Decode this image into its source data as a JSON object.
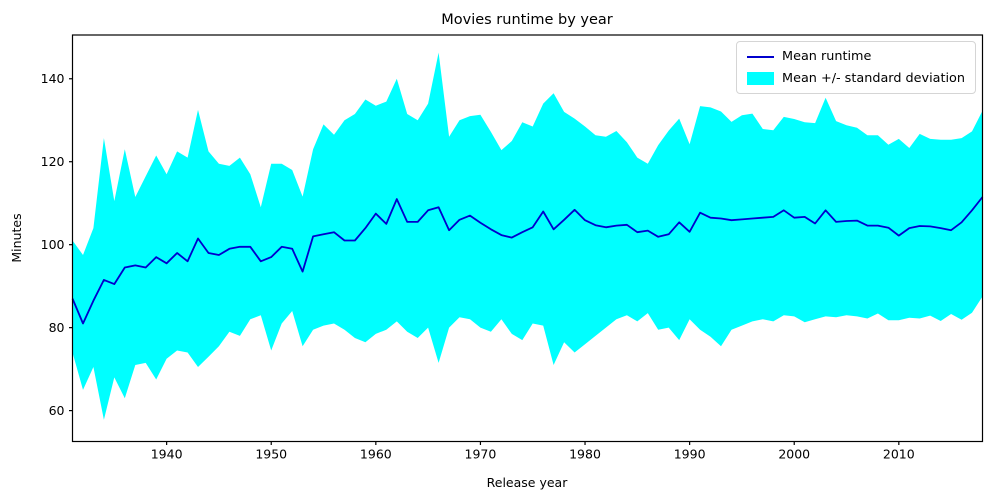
{
  "title": "Movies runtime by year",
  "xlabel": "Release year",
  "ylabel": "Minutes",
  "legend": {
    "items": [
      {
        "label": "Mean runtime",
        "type": "line",
        "color": "#0000cd"
      },
      {
        "label": "Mean +/- standard deviation",
        "type": "patch",
        "color": "#00ffff"
      }
    ],
    "position": "upper right"
  },
  "colors": {
    "mean_line": "#0000cd",
    "band_fill": "#00ffff",
    "axes": "#000000",
    "background": "#ffffff"
  },
  "chart_data": {
    "type": "line",
    "title": "Movies runtime by year",
    "xlabel": "Release year",
    "ylabel": "Minutes",
    "grid": false,
    "legend_position": "upper right",
    "xlim": [
      1931,
      2018
    ],
    "ylim": [
      52.55,
      150.55
    ],
    "xticks": [
      1940,
      1950,
      1960,
      1970,
      1980,
      1990,
      2000,
      2010
    ],
    "yticks": [
      60,
      80,
      100,
      120,
      140
    ],
    "x": [
      1931,
      1932,
      1933,
      1934,
      1935,
      1936,
      1937,
      1938,
      1939,
      1940,
      1941,
      1942,
      1943,
      1944,
      1945,
      1946,
      1947,
      1948,
      1949,
      1950,
      1951,
      1952,
      1953,
      1954,
      1955,
      1956,
      1957,
      1958,
      1959,
      1960,
      1961,
      1962,
      1963,
      1964,
      1965,
      1966,
      1967,
      1968,
      1969,
      1970,
      1971,
      1972,
      1973,
      1974,
      1975,
      1976,
      1977,
      1978,
      1979,
      1980,
      1981,
      1982,
      1983,
      1984,
      1985,
      1986,
      1987,
      1988,
      1989,
      1990,
      1991,
      1992,
      1993,
      1994,
      1995,
      1996,
      1997,
      1998,
      1999,
      2000,
      2001,
      2002,
      2003,
      2004,
      2005,
      2006,
      2007,
      2008,
      2009,
      2010,
      2011,
      2012,
      2013,
      2014,
      2015,
      2016,
      2017,
      2018
    ],
    "series": [
      {
        "name": "Mean runtime",
        "role": "mean-line",
        "color": "#0000cd",
        "values": [
          87.0,
          81.0,
          86.5,
          91.5,
          90.5,
          94.5,
          95.0,
          94.5,
          97.0,
          95.5,
          98.0,
          96.0,
          101.5,
          98.0,
          97.5,
          99.0,
          99.5,
          99.5,
          96.0,
          97.0,
          99.5,
          99.0,
          93.5,
          102.0,
          102.5,
          103.0,
          101.0,
          101.0,
          104.0,
          107.5,
          105.0,
          111.0,
          105.5,
          105.5,
          108.3,
          109.0,
          103.5,
          106.0,
          107.0,
          105.3,
          103.7,
          102.3,
          101.7,
          103.0,
          104.2,
          108.0,
          103.7,
          106.0,
          108.4,
          105.9,
          104.7,
          104.2,
          104.6,
          104.8,
          103.0,
          103.4,
          101.9,
          102.5,
          105.4,
          103.1,
          107.7,
          106.5,
          106.3,
          105.9,
          106.1,
          106.3,
          106.5,
          106.7,
          108.3,
          106.5,
          106.7,
          105.1,
          108.3,
          105.5,
          105.7,
          105.8,
          104.6,
          104.6,
          104.1,
          102.2,
          104.0,
          104.5,
          104.4,
          104.0,
          103.5,
          105.4,
          108.3,
          111.5
        ]
      },
      {
        "name": "Mean + standard deviation",
        "role": "band-upper",
        "color": "#00ffff",
        "values": [
          101.0,
          97.5,
          104.0,
          125.7,
          110.5,
          123.0,
          111.5,
          116.5,
          121.5,
          117.0,
          122.5,
          121.0,
          132.5,
          122.5,
          119.5,
          119.0,
          121.0,
          117.0,
          109.0,
          119.5,
          119.5,
          118.0,
          111.6,
          123.0,
          129.0,
          126.5,
          130.0,
          131.5,
          135.0,
          133.5,
          134.5,
          140.0,
          131.5,
          130.0,
          134.0,
          146.3,
          126.0,
          130.0,
          131.0,
          131.3,
          127.2,
          122.8,
          125.0,
          129.5,
          128.5,
          134.0,
          136.5,
          132.0,
          130.4,
          128.5,
          126.4,
          126.0,
          127.4,
          124.7,
          121.0,
          119.5,
          124.0,
          127.5,
          130.4,
          124.2,
          133.4,
          133.1,
          132.1,
          129.6,
          131.2,
          131.6,
          127.9,
          127.6,
          130.8,
          130.3,
          129.5,
          129.3,
          135.4,
          129.8,
          128.8,
          128.2,
          126.4,
          126.4,
          124.1,
          125.5,
          123.3,
          126.7,
          125.5,
          125.3,
          125.3,
          125.7,
          127.3,
          132.3
        ]
      },
      {
        "name": "Mean - standard deviation",
        "role": "band-lower",
        "color": "#00ffff",
        "values": [
          74.0,
          65.0,
          70.5,
          57.8,
          68.0,
          63.0,
          71.0,
          71.5,
          67.5,
          72.5,
          74.5,
          74.0,
          70.5,
          73.0,
          75.5,
          79.0,
          78.0,
          82.0,
          83.0,
          74.5,
          81.0,
          84.0,
          75.5,
          79.5,
          80.5,
          81.0,
          79.5,
          77.5,
          76.5,
          78.5,
          79.5,
          81.5,
          79.0,
          77.5,
          80.0,
          71.5,
          80.0,
          82.5,
          82.0,
          80.0,
          79.0,
          82.0,
          78.5,
          77.0,
          81.0,
          80.5,
          71.0,
          76.5,
          74.0,
          76.0,
          78.0,
          80.0,
          82.0,
          83.0,
          81.5,
          83.5,
          79.5,
          80.0,
          77.0,
          82.0,
          79.5,
          77.8,
          75.5,
          79.5,
          80.5,
          81.5,
          82.0,
          81.5,
          83.0,
          82.7,
          81.3,
          82.0,
          82.7,
          82.5,
          83.0,
          82.7,
          82.2,
          83.4,
          81.8,
          81.8,
          82.4,
          82.2,
          82.9,
          81.6,
          83.3,
          81.9,
          83.6,
          87.5
        ]
      }
    ]
  }
}
